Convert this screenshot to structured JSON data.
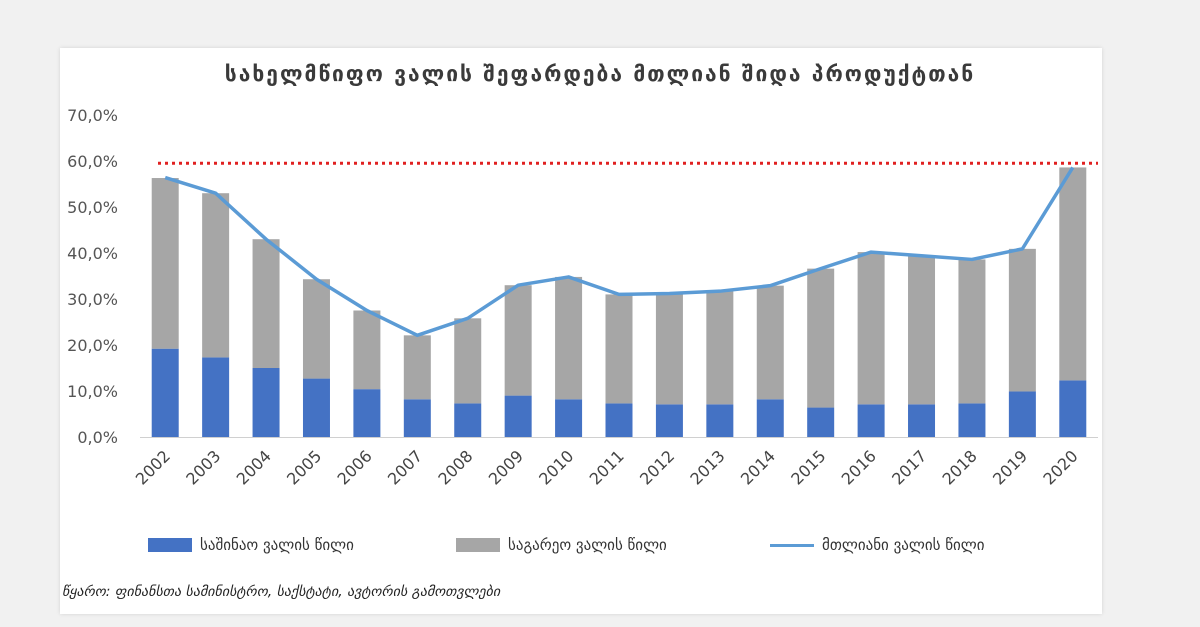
{
  "colors": {
    "domestic": "#4472c4",
    "external": "#a6a6a6",
    "total_line": "#5b9bd5",
    "threshold": "#e02020",
    "axis": "#d0d0d0"
  },
  "chart_data": {
    "type": "bar",
    "title": "სახელმწიფო ვალის შეფარდება მთლიან შიდა პროდუქტთან",
    "categories": [
      "2002",
      "2003",
      "2004",
      "2005",
      "2006",
      "2007",
      "2008",
      "2009",
      "2010",
      "2011",
      "2012",
      "2013",
      "2014",
      "2015",
      "2016",
      "2017",
      "2018",
      "2019",
      "2020"
    ],
    "stacked": true,
    "y_ticks": [
      "0,0%",
      "10,0%",
      "20,0%",
      "30,0%",
      "40,0%",
      "50,0%",
      "60,0%",
      "70,0%"
    ],
    "ylim": [
      0,
      70
    ],
    "series": [
      {
        "name": "საშინაო ვალის წილი",
        "type": "bar",
        "values": [
          19.2,
          17.3,
          15.0,
          12.7,
          10.4,
          8.2,
          7.3,
          9.0,
          8.2,
          7.3,
          7.1,
          7.1,
          8.2,
          6.4,
          7.1,
          7.1,
          7.3,
          9.9,
          12.3
        ]
      },
      {
        "name": "საგარეო ვალის წილი",
        "type": "bar",
        "values": [
          37.1,
          35.7,
          28.0,
          21.6,
          17.1,
          13.9,
          18.5,
          24.0,
          26.6,
          23.7,
          24.1,
          24.6,
          24.7,
          30.2,
          33.1,
          32.3,
          31.3,
          31.0,
          46.3
        ]
      },
      {
        "name": "მთლიანი ვალის წილი",
        "type": "line",
        "values": [
          56.4,
          53.0,
          43.0,
          34.3,
          27.5,
          22.1,
          25.8,
          33.0,
          34.8,
          31.0,
          31.2,
          31.7,
          32.9,
          36.6,
          40.2,
          39.4,
          38.6,
          40.9,
          58.6
        ]
      }
    ],
    "threshold": {
      "value": 59.5,
      "style": "dotted"
    },
    "grid": false,
    "legend_position": "bottom"
  },
  "legend": {
    "domestic": "საშინაო ვალის წილი",
    "external": "საგარეო ვალის წილი",
    "total": "მთლიანი ვალის წილი"
  },
  "source_note": "წყარო: ფინანსთა სამინისტრო, საქსტატი, ავტორის გამოთვლები"
}
